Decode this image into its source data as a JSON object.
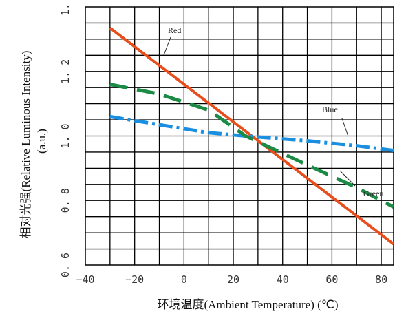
{
  "chart_data": {
    "type": "line",
    "title": "",
    "xlabel": "环境温度(Ambient Temperature) (℃)",
    "ylabel": "相对光强(Relative Luminous Intensity)",
    "ylabel_unit": "(a.u.)",
    "xlim": [
      -40,
      85
    ],
    "ylim": [
      0.6,
      1.4
    ],
    "x_ticks": [
      "−40",
      "−20",
      "0",
      "20",
      "40",
      "60",
      "80"
    ],
    "y_ticks": [
      "0. 6",
      "0. 8",
      "1. 0",
      "1. 2",
      "1."
    ],
    "grid": true,
    "series": [
      {
        "name": "Red",
        "color": "#e84d1c",
        "style": "solid",
        "x": [
          -30,
          85
        ],
        "y": [
          1.335,
          0.665
        ]
      },
      {
        "name": "Blue",
        "color": "#1a8fe0",
        "style": "dashdot",
        "x": [
          -30,
          -10,
          10,
          25,
          50,
          70,
          85
        ],
        "y": [
          1.06,
          1.035,
          1.01,
          1.0,
          0.985,
          0.97,
          0.955
        ]
      },
      {
        "name": "Green",
        "color": "#1a8a45",
        "style": "dashed",
        "x": [
          -30,
          -10,
          10,
          25,
          50,
          70,
          85
        ],
        "y": [
          1.16,
          1.13,
          1.08,
          1.0,
          0.91,
          0.84,
          0.78
        ]
      }
    ]
  }
}
